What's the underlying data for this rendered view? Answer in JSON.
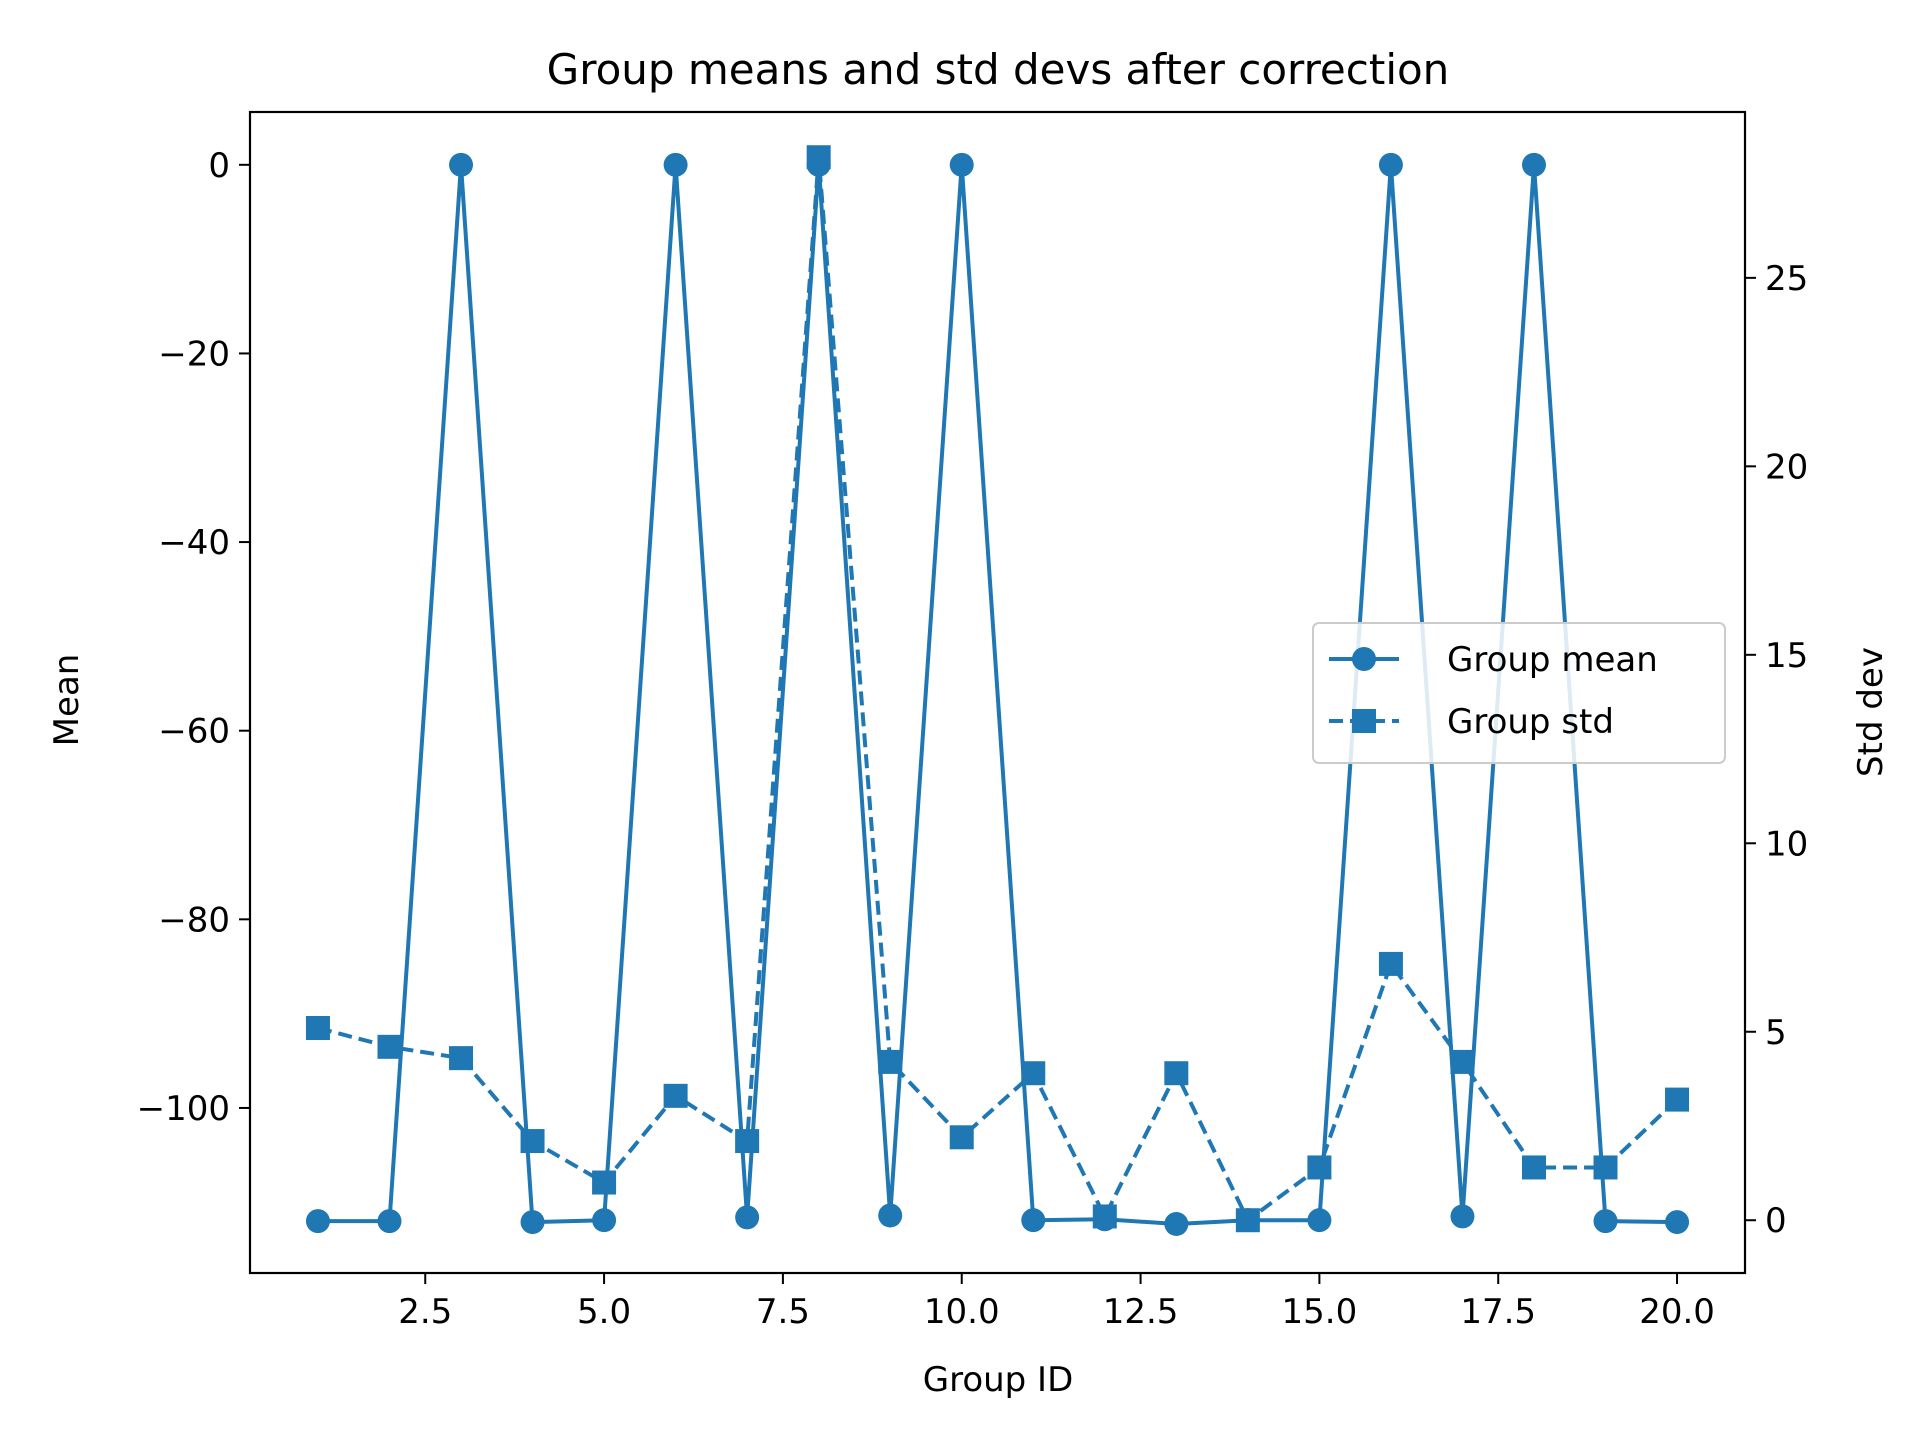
{
  "chart_data": {
    "type": "line",
    "title": "Group means and std devs after correction",
    "xlabel": "Group ID",
    "ylabel": "Mean",
    "y2label": "Std dev",
    "x": [
      1,
      2,
      3,
      4,
      5,
      6,
      7,
      8,
      9,
      10,
      11,
      12,
      13,
      14,
      15,
      16,
      17,
      18,
      19,
      20
    ],
    "xlim": [
      0.05,
      20.95
    ],
    "ylim": [
      -117.5,
      5.6
    ],
    "y2lim": [
      -1.4,
      29.4
    ],
    "x_ticks": [
      2.5,
      5.0,
      7.5,
      10.0,
      12.5,
      15.0,
      17.5,
      20.0
    ],
    "x_tick_labels": [
      "2.5",
      "5.0",
      "7.5",
      "10.0",
      "12.5",
      "15.0",
      "17.5",
      "20.0"
    ],
    "y_ticks": [
      0,
      -20,
      -40,
      -60,
      -80,
      -100
    ],
    "y_tick_labels": [
      "0",
      "−20",
      "−40",
      "−60",
      "−80",
      "−100"
    ],
    "y2_ticks": [
      0,
      5,
      10,
      15,
      20,
      25
    ],
    "y2_tick_labels": [
      "0",
      "5",
      "10",
      "15",
      "20",
      "25"
    ],
    "grid": false,
    "legend_position": "center-right",
    "series": [
      {
        "name": "Group mean",
        "axis": "left",
        "color": "#1f77b4",
        "linestyle": "solid",
        "marker": "circle",
        "values": [
          -112.0,
          -112.0,
          0.0,
          -112.1,
          -111.9,
          0.0,
          -111.6,
          0.0,
          -111.4,
          0.0,
          -111.9,
          -111.8,
          -112.3,
          -111.9,
          -111.9,
          0.0,
          -111.5,
          0.0,
          -112.0,
          -112.1
        ]
      },
      {
        "name": "Group std",
        "axis": "right",
        "color": "#1f77b4",
        "linestyle": "dashed",
        "marker": "square",
        "values": [
          5.1,
          4.6,
          4.3,
          2.1,
          1.0,
          3.3,
          2.1,
          28.2,
          4.2,
          2.2,
          3.9,
          0.1,
          3.9,
          0.0,
          1.4,
          6.8,
          4.2,
          1.4,
          1.4,
          3.2
        ]
      }
    ]
  }
}
